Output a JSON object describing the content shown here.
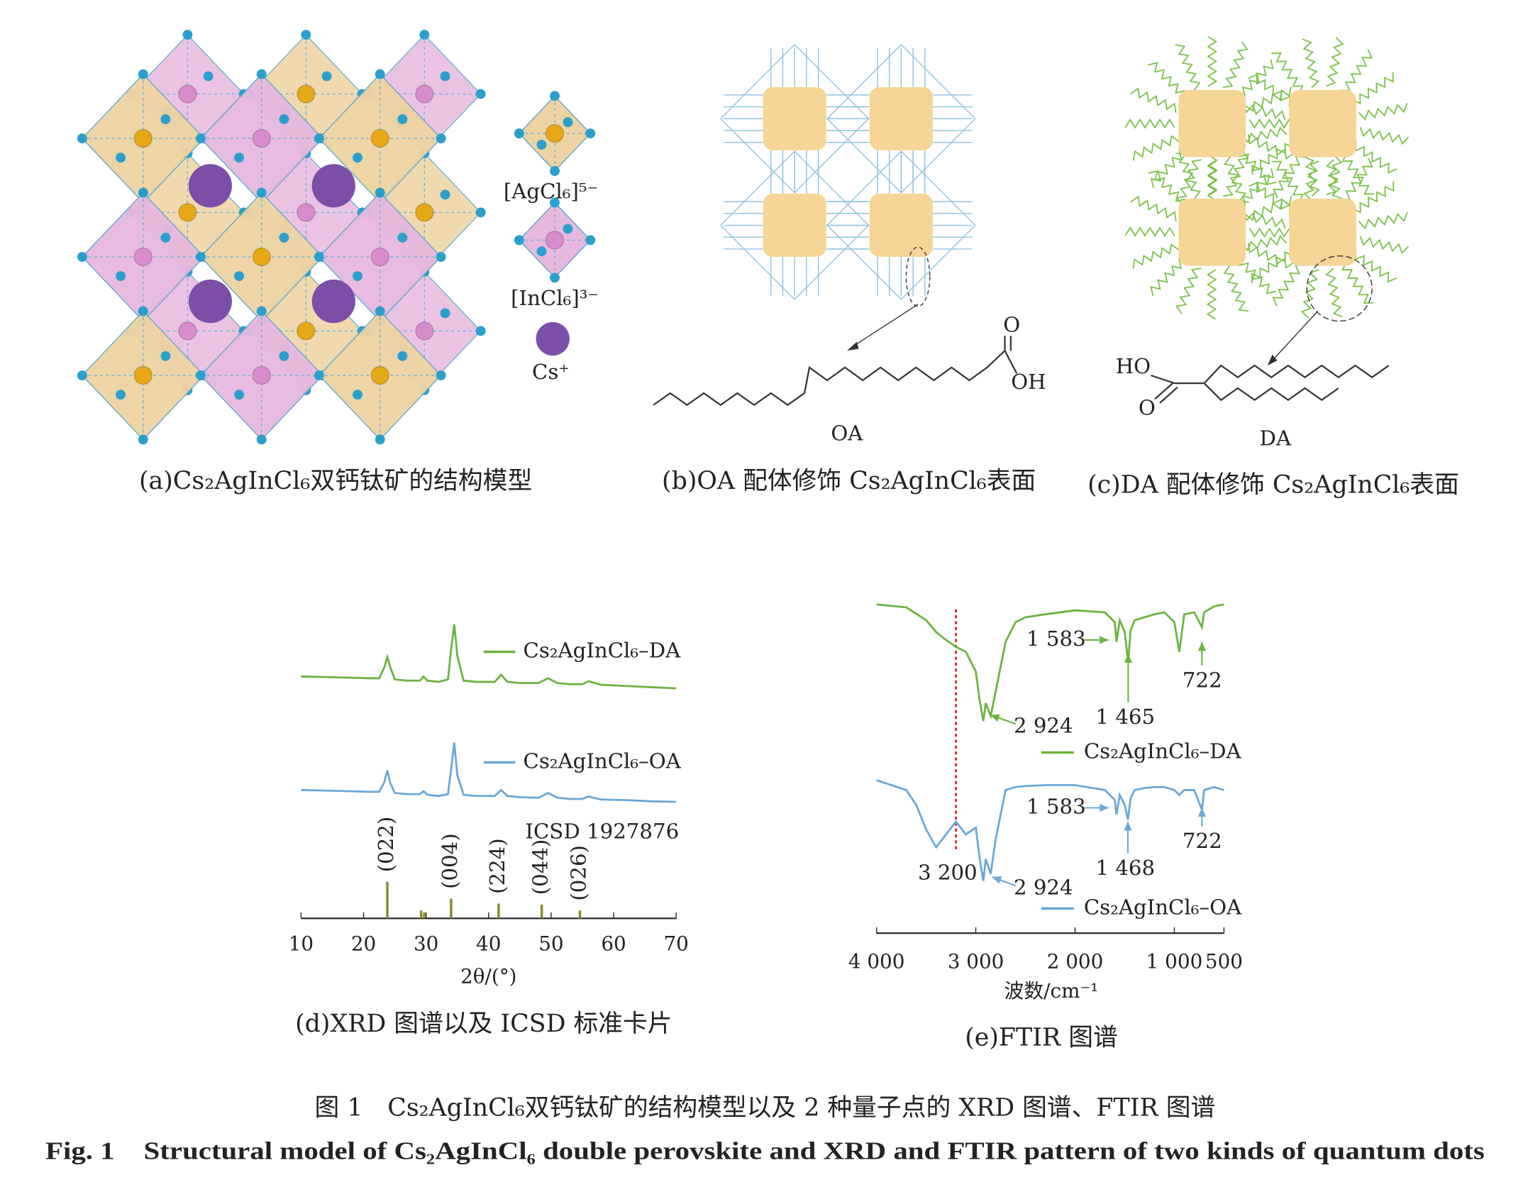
{
  "panel_a": {
    "caption": "(a)Cs₂AgInCl₆双钙钛矿的结构模型",
    "legend": [
      "[AgCl₆]⁵⁻",
      "[InCl₆]³⁻",
      "Cs⁺"
    ]
  },
  "panel_b": {
    "caption": "(b)OA 配体修饰 Cs₂AgInCl₆表面",
    "atoms": [
      "O",
      "OH"
    ],
    "ligand": "OA"
  },
  "panel_c": {
    "caption": "(c)DA 配体修饰 Cs₂AgInCl₆表面",
    "atoms": [
      "HO",
      "O"
    ],
    "ligand": "DA"
  },
  "chart_data": [
    {
      "type": "line",
      "caption": "(d)XRD 图谱以及 ICSD 标准卡片",
      "xlabel": "2θ/(°)",
      "xlim": [
        10,
        70
      ],
      "xticks": [
        10,
        20,
        30,
        40,
        50,
        60,
        70
      ],
      "series": [
        {
          "name": "Cs₂AgInCl₆–DA",
          "color": "#6cb33f",
          "x": [
            10,
            14,
            18,
            21,
            22.5,
            23.3,
            23.8,
            24.3,
            25,
            27,
            29,
            29.6,
            30.2,
            32,
            33.5,
            34.0,
            34.5,
            35,
            36,
            38,
            41,
            42,
            43,
            45,
            48,
            49.5,
            51,
            53,
            55,
            56,
            58,
            62,
            66,
            70
          ],
          "values": [
            25,
            24,
            23,
            22,
            22,
            40,
            58,
            40,
            20,
            18,
            18,
            25,
            18,
            16,
            20,
            70,
            113,
            60,
            18,
            16,
            16,
            28,
            16,
            14,
            14,
            22,
            14,
            12,
            12,
            17,
            11,
            9,
            7,
            5
          ]
        },
        {
          "name": "Cs₂AgInCl₆–OA",
          "color": "#6aa8d8",
          "x": [
            10,
            14,
            18,
            21,
            22.5,
            23.3,
            23.8,
            24.3,
            25,
            27,
            29,
            29.6,
            30.2,
            32,
            33.5,
            34.0,
            34.5,
            35,
            36,
            38,
            41,
            42,
            43,
            45,
            48,
            49.5,
            51,
            53,
            55,
            56,
            58,
            62,
            66,
            70
          ],
          "values": [
            25,
            24,
            23,
            22,
            22,
            38,
            58,
            36,
            20,
            18,
            18,
            23,
            17,
            15,
            18,
            60,
            105,
            50,
            17,
            15,
            15,
            25,
            15,
            13,
            12,
            20,
            12,
            10,
            10,
            14,
            9,
            8,
            6,
            5
          ]
        }
      ],
      "reference": {
        "name": "ICSD 1927876",
        "color": "#8a8a2a",
        "x": [
          23.8,
          29.2,
          29.7,
          34.0,
          41.6,
          48.5,
          54.6
        ],
        "values": [
          37,
          8,
          6,
          20,
          15,
          14,
          8
        ],
        "labels": [
          "(022)",
          null,
          null,
          "(004)",
          "(224)",
          "(044)",
          "(026)"
        ]
      }
    },
    {
      "type": "line",
      "caption": "(e)FTIR 图谱",
      "xlabel": "波数/cm⁻¹",
      "xlim": [
        4000,
        500
      ],
      "xticks": [
        {
          "value": 4000,
          "label": "4 000"
        },
        {
          "value": 3000,
          "label": "3 000"
        },
        {
          "value": 2000,
          "label": "2 000"
        },
        {
          "value": 1000,
          "label": "1 000"
        },
        500
      ],
      "marker_line": 3200,
      "marker_color": "#d62020",
      "series": [
        {
          "name": "Cs₂AgInCl₆–DA",
          "color": "#6cb33f",
          "x": [
            4000,
            3700,
            3500,
            3400,
            3300,
            3200,
            3100,
            3000,
            2960,
            2924,
            2900,
            2850,
            2800,
            2700,
            2600,
            2500,
            2300,
            2000,
            1700,
            1600,
            1583,
            1550,
            1500,
            1465,
            1440,
            1400,
            1300,
            1200,
            1100,
            1000,
            950,
            900,
            800,
            722,
            700,
            600,
            500
          ],
          "values": [
            128,
            125,
            112,
            100,
            92,
            85,
            80,
            60,
            30,
            10,
            28,
            15,
            40,
            90,
            110,
            115,
            118,
            122,
            120,
            110,
            90,
            112,
            100,
            70,
            102,
            112,
            115,
            118,
            120,
            110,
            80,
            118,
            120,
            105,
            120,
            126,
            128
          ],
          "annotations": [
            {
              "value": 1583,
              "label": "1 583"
            },
            {
              "value": 2924,
              "label": "2 924"
            },
            {
              "value": 1465,
              "label": "1 465"
            },
            {
              "value": 722,
              "label": "722"
            }
          ]
        },
        {
          "name": "Cs₂AgInCl₆–OA",
          "color": "#6aa8d8",
          "x": [
            4000,
            3700,
            3600,
            3500,
            3400,
            3300,
            3200,
            3100,
            3000,
            2960,
            2924,
            2900,
            2850,
            2800,
            2700,
            2600,
            2500,
            2300,
            2000,
            1700,
            1600,
            1583,
            1550,
            1500,
            1468,
            1440,
            1400,
            1300,
            1200,
            1100,
            1000,
            950,
            900,
            800,
            722,
            700,
            600,
            500
          ],
          "values": [
            110,
            100,
            85,
            60,
            42,
            55,
            68,
            55,
            62,
            30,
            8,
            30,
            15,
            50,
            100,
            103,
            104,
            105,
            105,
            100,
            90,
            75,
            95,
            85,
            70,
            92,
            100,
            102,
            103,
            103,
            100,
            95,
            100,
            100,
            80,
            100,
            103,
            100
          ],
          "annotations": [
            {
              "value": 1583,
              "label": "1 583"
            },
            {
              "value": 3200,
              "label": "3 200"
            },
            {
              "value": 2924,
              "label": "2 924"
            },
            {
              "value": 1468,
              "label": "1 468"
            },
            {
              "value": 722,
              "label": "722"
            }
          ]
        }
      ]
    }
  ],
  "figure_title": {
    "zh": "图 1　Cs₂AgInCl₆双钙钛矿的结构模型以及 2 种量子点的 XRD 图谱、FTIR 图谱",
    "en": "Fig. 1　Structural model of Cs₂AgInCl₆ double perovskite and XRD and FTIR pattern of two kinds of quantum dots"
  }
}
